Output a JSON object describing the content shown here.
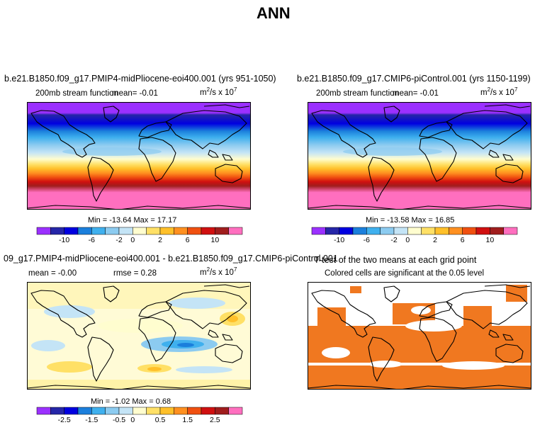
{
  "figure_title": "ANN",
  "chart_data": [
    {
      "type": "heatmap",
      "panel": "top-left",
      "title": "b.e21.B1850.f09_g17.PMIP4-midPliocene-eoi400.001 (yrs 951-1050)",
      "variable": "200mb stream function",
      "mean_text": "mean=   -0.01",
      "units_base": "m",
      "units_exp": "2",
      "units_mid": "/s x 10",
      "units_exp2": "7",
      "min_max_text": "Min = -13.64 Max =  17.17",
      "colorbar_ticks": [
        "-10",
        "-6",
        "-2",
        "0",
        "2",
        "6",
        "10"
      ],
      "colorbar_colors": [
        "#9b30ff",
        "#2626a8",
        "#0000e0",
        "#1b7fdc",
        "#3fb0ee",
        "#8ccbf0",
        "#c4e4f6",
        "#fffdcf",
        "#ffe066",
        "#ffc02a",
        "#ff9020",
        "#f05010",
        "#d01010",
        "#a01d1d",
        "#ff6fbf"
      ],
      "value_range": [
        -13.64,
        17.17
      ],
      "mean": -0.01
    },
    {
      "type": "heatmap",
      "panel": "top-right",
      "title": "b.e21.B1850.f09_g17.CMIP6-piControl.001 (yrs 1150-1199)",
      "variable": "200mb stream function",
      "mean_text": "mean=   -0.01",
      "units_base": "m",
      "units_exp": "2",
      "units_mid": "/s x 10",
      "units_exp2": "7",
      "min_max_text": "Min = -13.58 Max =  16.85",
      "colorbar_ticks": [
        "-10",
        "-6",
        "-2",
        "0",
        "2",
        "6",
        "10"
      ],
      "value_range": [
        -13.58,
        16.85
      ],
      "mean": -0.01
    },
    {
      "type": "heatmap",
      "panel": "bottom-left",
      "title": "09_g17.PMIP4-midPliocene-eoi400.001 - b.e21.B1850.f09_g17.CMIP6-piControl.001",
      "mean_text": "mean =   -0.00",
      "rmse_text": "rmse =     0.28",
      "units_base": "m",
      "units_exp": "2",
      "units_mid": "/s x 10",
      "units_exp2": "7",
      "min_max_text": "Min = -1.02 Max =   0.68",
      "colorbar_ticks": [
        "-2.5",
        "-1.5",
        "-0.5",
        "0",
        "0.5",
        "1.5",
        "2.5"
      ],
      "value_range": [
        -1.02,
        0.68
      ],
      "mean": -0.0,
      "rmse": 0.28
    },
    {
      "type": "heatmap",
      "panel": "bottom-right",
      "title": "T-test of the two means at each grid point",
      "subtitle": "Colored cells are significant at the 0.05 level",
      "significance_level": 0.05,
      "significant_color": "#f07820"
    }
  ]
}
